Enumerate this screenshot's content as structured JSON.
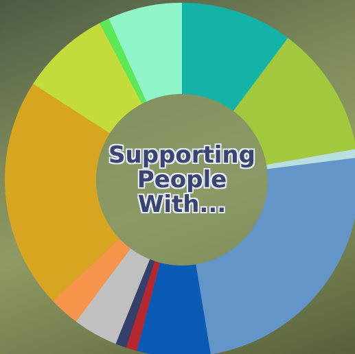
{
  "chart_data": {
    "type": "pie",
    "title": "Supporting People With...",
    "donut": true,
    "values": [
      10.2,
      12.0,
      0.8,
      24.4,
      6.7,
      1.0,
      1.0,
      4.1,
      2.8,
      21.1,
      8.2,
      0.9,
      6.8
    ],
    "colors": [
      "#14b3a8",
      "#a2c93e",
      "#b8e0e0",
      "#6495c8",
      "#0a5bb5",
      "#b8272d",
      "#34406b",
      "#c0c0c0",
      "#f5944a",
      "#d8a520",
      "#c3dc3c",
      "#5de855",
      "#8ff5c8"
    ]
  }
}
